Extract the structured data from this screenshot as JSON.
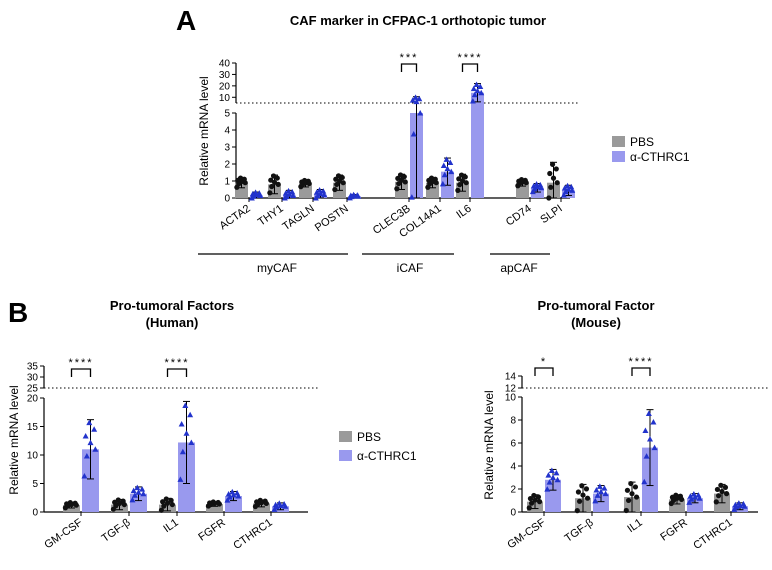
{
  "panel_a": {
    "letter": "A",
    "legend": [
      {
        "name": "PBS",
        "color": "#9a9a9a"
      },
      {
        "name": "α-CTHRC1",
        "color": "#9999ee"
      }
    ],
    "group_labels": [
      "myCAF",
      "iCAF",
      "apCAF"
    ]
  },
  "panel_b": {
    "letter": "B",
    "legend": [
      {
        "name": "PBS",
        "color": "#9a9a9a"
      },
      {
        "name": "α-CTHRC1",
        "color": "#9999ee"
      }
    ]
  },
  "chart_data": [
    {
      "type": "bar",
      "title": "CAF marker in CFPAC-1 orthotopic tumor",
      "ylabel": "Relative mRNA level",
      "xlabel": "",
      "categories": [
        "ACTA2",
        "THY1",
        "TAGLN",
        "POSTN",
        "CLEC3B",
        "COL14A1",
        "IL6",
        "CD74",
        "SLPI"
      ],
      "series": [
        {
          "name": "PBS",
          "values": [
            0.9,
            0.8,
            0.85,
            0.9,
            0.95,
            0.9,
            0.9,
            0.9,
            0.9
          ],
          "errors": [
            0.3,
            0.55,
            0.2,
            0.45,
            0.45,
            0.3,
            0.5,
            0.2,
            1.2
          ]
        },
        {
          "name": "α-CTHRC1",
          "values": [
            0.15,
            0.15,
            0.2,
            0.1,
            5.0,
            1.55,
            14.0,
            0.6,
            0.45
          ],
          "errors": [
            0.2,
            0.3,
            0.3,
            0.1,
            5.5,
            0.8,
            8.0,
            0.25,
            0.3
          ]
        }
      ],
      "y_lower_range": [
        0,
        5
      ],
      "y_lower_ticks": [
        0,
        1,
        2,
        3,
        4,
        5
      ],
      "y_upper_range": [
        5,
        40
      ],
      "y_upper_ticks": [
        10,
        20,
        30,
        40
      ],
      "significance": [
        {
          "category": "CLEC3B",
          "label": "***"
        },
        {
          "category": "IL6",
          "label": "****"
        }
      ],
      "groups": [
        {
          "name": "myCAF",
          "categories": [
            "ACTA2",
            "THY1",
            "TAGLN",
            "POSTN"
          ]
        },
        {
          "name": "iCAF",
          "categories": [
            "CLEC3B",
            "COL14A1",
            "IL6"
          ]
        },
        {
          "name": "apCAF",
          "categories": [
            "CD74",
            "SLPI"
          ]
        }
      ]
    },
    {
      "type": "bar",
      "title": "Pro-tumoral Factors",
      "subtitle": "(Human)",
      "ylabel": "Relative mRNA level",
      "xlabel": "",
      "categories": [
        "GM-CSF",
        "TGF-β",
        "IL1",
        "FGFR",
        "CTHRC1"
      ],
      "series": [
        {
          "name": "PBS",
          "values": [
            1.2,
            1.3,
            1.3,
            1.4,
            1.5
          ],
          "errors": [
            0.5,
            0.9,
            1.1,
            0.4,
            0.6
          ]
        },
        {
          "name": "α-CTHRC1",
          "values": [
            11.0,
            3.2,
            12.2,
            2.8,
            1.0
          ],
          "errors": [
            5.2,
            1.2,
            7.2,
            0.8,
            0.6
          ]
        }
      ],
      "y_lower_range": [
        0,
        20
      ],
      "y_lower_ticks": [
        0,
        5,
        10,
        15,
        20
      ],
      "y_upper_range": [
        25,
        35
      ],
      "y_upper_ticks": [
        25,
        30,
        35
      ],
      "significance": [
        {
          "category": "GM-CSF",
          "label": "****"
        },
        {
          "category": "IL1",
          "label": "****"
        }
      ]
    },
    {
      "type": "bar",
      "title": "Pro-tumoral Factor",
      "subtitle": "(Mouse)",
      "ylabel": "Relative mRNA level",
      "xlabel": "",
      "categories": [
        "GM-CSF",
        "TGF-β",
        "IL1",
        "FGFR",
        "CTHRC1"
      ],
      "series": [
        {
          "name": "PBS",
          "values": [
            0.9,
            1.2,
            1.3,
            1.1,
            1.6
          ],
          "errors": [
            0.6,
            1.2,
            1.3,
            0.4,
            0.8
          ]
        },
        {
          "name": "α-CTHRC1",
          "values": [
            2.8,
            1.6,
            5.6,
            1.2,
            0.5
          ],
          "errors": [
            0.9,
            0.7,
            3.3,
            0.4,
            0.3
          ]
        }
      ],
      "y_lower_range": [
        0,
        10
      ],
      "y_lower_ticks": [
        0,
        2,
        4,
        6,
        8,
        10
      ],
      "y_upper_range": [
        12,
        14
      ],
      "y_upper_ticks": [
        12,
        14
      ],
      "significance": [
        {
          "category": "GM-CSF",
          "label": "*"
        },
        {
          "category": "IL1",
          "label": "****"
        }
      ]
    }
  ]
}
